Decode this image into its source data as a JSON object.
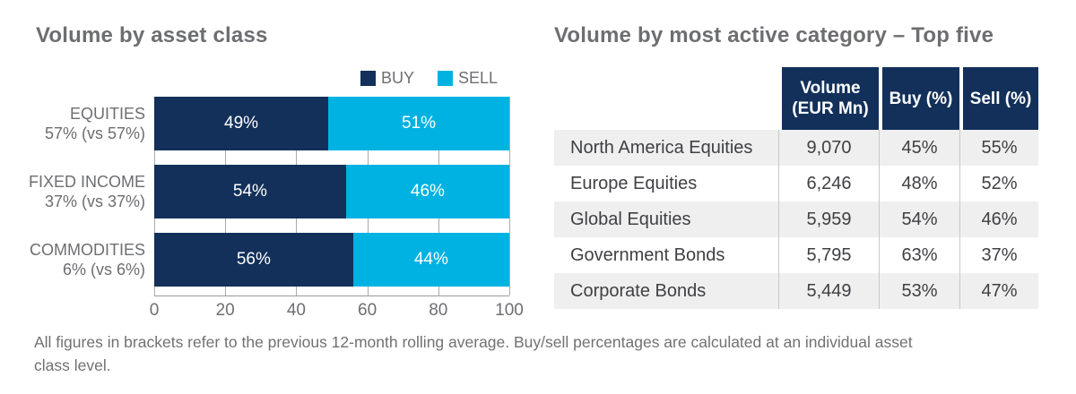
{
  "left_chart": {
    "title": "Volume by asset class",
    "legend": [
      {
        "label": "BUY",
        "color": "#12305a"
      },
      {
        "label": "SELL",
        "color": "#00b2e2"
      }
    ],
    "categories": [
      {
        "name": "EQUITIES",
        "sub": "57% (vs 57%)",
        "buy_pct": 49,
        "sell_pct": 51,
        "buy_label": "49%",
        "sell_label": "51%"
      },
      {
        "name": "FIXED INCOME",
        "sub": "37% (vs 37%)",
        "buy_pct": 54,
        "sell_pct": 46,
        "buy_label": "54%",
        "sell_label": "46%"
      },
      {
        "name": "COMMODITIES",
        "sub": "6% (vs 6%)",
        "buy_pct": 56,
        "sell_pct": 44,
        "buy_label": "56%",
        "sell_label": "44%"
      }
    ],
    "axis_ticks": [
      "0",
      "20",
      "40",
      "60",
      "80",
      "100"
    ]
  },
  "right_table": {
    "title": "Volume by most active category – Top five",
    "headers": [
      "Volume\n(EUR Mn)",
      "Buy (%)",
      "Sell (%)"
    ],
    "rows": [
      {
        "label": "North America Equities",
        "volume": "9,070",
        "buy": "45%",
        "sell": "55%"
      },
      {
        "label": "Europe Equities",
        "volume": "6,246",
        "buy": "48%",
        "sell": "52%"
      },
      {
        "label": "Global Equities",
        "volume": "5,959",
        "buy": "54%",
        "sell": "46%"
      },
      {
        "label": "Government Bonds",
        "volume": "5,795",
        "buy": "63%",
        "sell": "37%"
      },
      {
        "label": "Corporate Bonds",
        "volume": "5,449",
        "buy": "53%",
        "sell": "47%"
      }
    ]
  },
  "footer": {
    "line1": "All figures in brackets refer to the previous 12-month rolling average. Buy/sell percentages are calculated at an individual asset",
    "line2": "class level."
  },
  "colors": {
    "navy": "#12305a",
    "cyan": "#00b2e2",
    "title_gray": "#6d6e71",
    "body_text": "#3f4043",
    "zebra_gray": "#efefef",
    "grid_gray": "#ababab"
  },
  "chart_data": [
    {
      "type": "bar",
      "orientation": "horizontal",
      "stacked": true,
      "title": "Volume by asset class",
      "categories": [
        "EQUITIES 57% (vs 57%)",
        "FIXED INCOME 37% (vs 37%)",
        "COMMODITIES 6% (vs 6%)"
      ],
      "series": [
        {
          "name": "BUY",
          "values": [
            49,
            54,
            56
          ]
        },
        {
          "name": "SELL",
          "values": [
            51,
            46,
            44
          ]
        }
      ],
      "xlim": [
        0,
        100
      ],
      "x_ticks": [
        0,
        20,
        40,
        60,
        80,
        100
      ],
      "legend_position": "top-right",
      "grid": "vertical-ticks-only",
      "value_labels": "inside-white-percent"
    },
    {
      "type": "table",
      "title": "Volume by most active category – Top five",
      "columns": [
        "",
        "Volume (EUR Mn)",
        "Buy (%)",
        "Sell (%)"
      ],
      "rows": [
        [
          "North America Equities",
          "9,070",
          "45%",
          "55%"
        ],
        [
          "Europe Equities",
          "6,246",
          "48%",
          "52%"
        ],
        [
          "Global Equities",
          "5,959",
          "54%",
          "46%"
        ],
        [
          "Government Bonds",
          "5,795",
          "63%",
          "37%"
        ],
        [
          "Corporate Bonds",
          "5,449",
          "53%",
          "47%"
        ]
      ]
    }
  ]
}
